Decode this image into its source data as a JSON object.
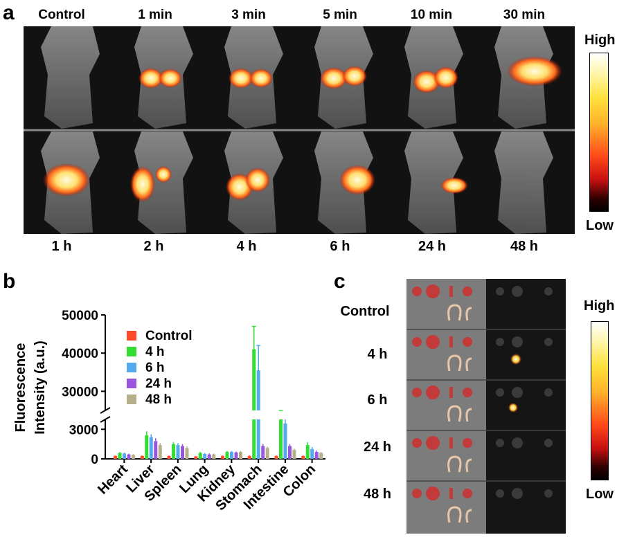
{
  "panel_a": {
    "letter": "a",
    "top_labels": [
      "Control",
      "1 min",
      "3 min",
      "5 min",
      "10 min",
      "30 min"
    ],
    "bottom_labels": [
      "1 h",
      "2 h",
      "4 h",
      "6 h",
      "24 h",
      "48 h"
    ],
    "colorbar": {
      "high": "High",
      "low": "Low"
    }
  },
  "panel_b": {
    "letter": "b"
  },
  "panel_c": {
    "letter": "c",
    "row_labels": [
      "Control",
      "4 h",
      "6 h",
      "24 h",
      "48 h"
    ],
    "colorbar": {
      "high": "High",
      "low": "Low"
    }
  },
  "chart_data": {
    "type": "bar",
    "ylabel_lines": [
      "Fluorescence",
      "Intensity (a.u.)"
    ],
    "categories": [
      "Heart",
      "Liver",
      "Spleen",
      "Lung",
      "Kidney",
      "Stomach",
      "Intestine",
      "Colon"
    ],
    "axis_break": {
      "lower_range": [
        0,
        4000
      ],
      "upper_range": [
        25000,
        50000
      ]
    },
    "yticks_lower": [
      0,
      3000
    ],
    "yticks_upper": [
      30000,
      40000,
      50000
    ],
    "ytick_labels_lower": [
      "0",
      "3000"
    ],
    "ytick_labels_upper": [
      "30000",
      "40000",
      "50000"
    ],
    "legend_position": "top-left",
    "series": [
      {
        "name": "Control",
        "color": "#ff4a2a",
        "values": [
          300,
          300,
          300,
          250,
          300,
          300,
          300,
          300
        ],
        "errors": [
          50,
          50,
          50,
          50,
          50,
          50,
          50,
          50
        ]
      },
      {
        "name": "4 h",
        "color": "#33dd33",
        "values": [
          600,
          2400,
          1500,
          600,
          700,
          41000,
          4200,
          1400
        ],
        "errors": [
          100,
          400,
          200,
          100,
          100,
          6000,
          400,
          300
        ]
      },
      {
        "name": "6 h",
        "color": "#55aaee",
        "values": [
          550,
          2200,
          1400,
          500,
          700,
          35500,
          3600,
          1000
        ],
        "errors": [
          100,
          300,
          200,
          100,
          100,
          6500,
          1000,
          200
        ]
      },
      {
        "name": "24 h",
        "color": "#9955dd",
        "values": [
          450,
          1800,
          1300,
          450,
          650,
          1300,
          1300,
          700
        ],
        "errors": [
          80,
          300,
          200,
          100,
          100,
          200,
          200,
          150
        ]
      },
      {
        "name": "48 h",
        "color": "#b5b08a",
        "values": [
          400,
          1400,
          1100,
          450,
          700,
          1100,
          900,
          600
        ],
        "errors": [
          80,
          200,
          150,
          80,
          100,
          150,
          150,
          100
        ]
      }
    ]
  }
}
